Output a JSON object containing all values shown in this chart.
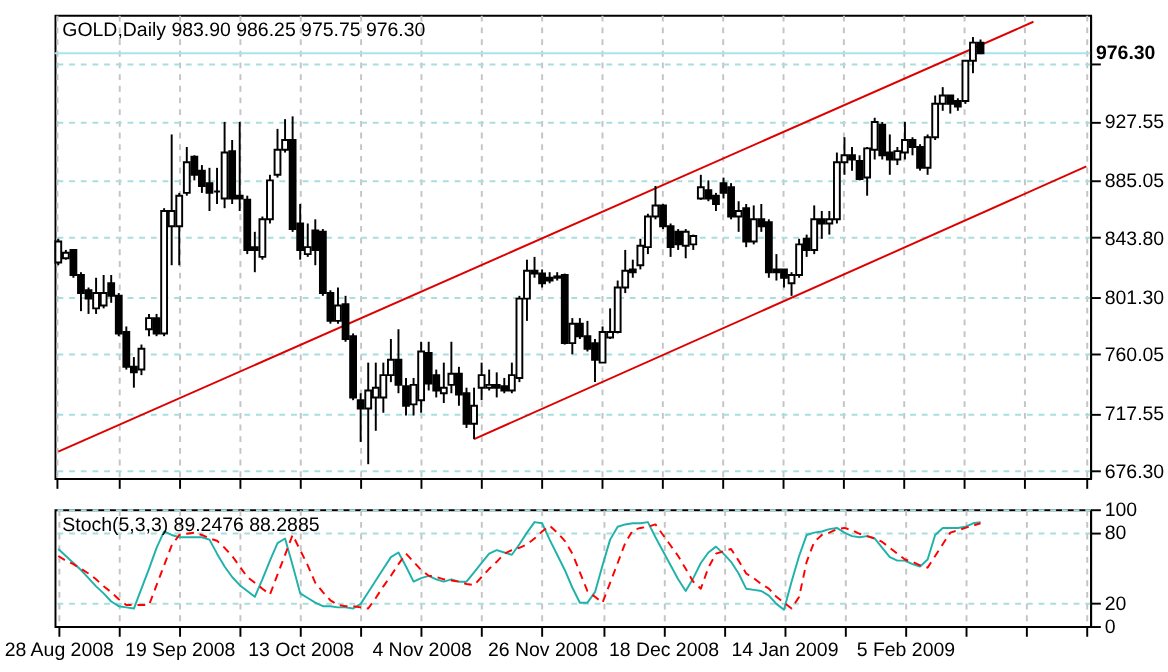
{
  "chart_data": [
    {
      "type": "candlestick",
      "title": "GOLD,Daily  983.90 986.25 975.75 976.30",
      "categories": [
        "28 Aug 2008",
        null,
        null,
        null,
        null,
        null,
        null,
        null,
        null,
        null,
        null,
        null,
        null,
        null,
        null,
        null,
        "19 Sep 2008",
        null,
        null,
        null,
        null,
        null,
        null,
        null,
        null,
        null,
        null,
        null,
        null,
        null,
        null,
        null,
        "13 Oct 2008",
        null,
        null,
        null,
        null,
        null,
        null,
        null,
        null,
        null,
        null,
        null,
        null,
        null,
        null,
        null,
        "4 Nov 2008",
        null,
        null,
        null,
        null,
        null,
        null,
        null,
        null,
        null,
        null,
        null,
        null,
        null,
        null,
        null,
        "26 Nov 2008",
        null,
        null,
        null,
        null,
        null,
        null,
        null,
        null,
        null,
        null,
        null,
        null,
        null,
        null,
        null,
        "18 Dec 2008",
        null,
        null,
        null,
        null,
        null,
        null,
        null,
        null,
        null,
        null,
        null,
        null,
        null,
        null,
        null,
        "14 Jan 2009",
        null,
        null,
        null,
        null,
        null,
        null,
        null,
        null,
        null,
        null,
        null,
        null,
        null,
        null,
        null,
        "5 Feb 2009",
        null,
        null,
        null,
        null,
        null,
        null,
        null,
        null,
        null,
        null,
        null,
        null,
        null,
        null,
        null,
        null,
        null,
        null,
        null,
        null,
        null,
        null,
        null,
        null
      ],
      "ohlc": [
        [
          826,
          843,
          824,
          841
        ],
        [
          829,
          835,
          828,
          833
        ],
        [
          835,
          835,
          815,
          817
        ],
        [
          817,
          819,
          791,
          804
        ],
        [
          806,
          808,
          789,
          800
        ],
        [
          793,
          815,
          789,
          804
        ],
        [
          795,
          817,
          793,
          804
        ],
        [
          811,
          817,
          797,
          802
        ],
        [
          802,
          804,
          773,
          775
        ],
        [
          776,
          780,
          749,
          751
        ],
        [
          751,
          758,
          736,
          747
        ],
        [
          749,
          767,
          745,
          764
        ],
        [
          778,
          789,
          773,
          786
        ],
        [
          786,
          789,
          773,
          775
        ],
        [
          775,
          865,
          773,
          863
        ],
        [
          852,
          918,
          824,
          863
        ],
        [
          852,
          876,
          824,
          874
        ],
        [
          876,
          909,
          874,
          898
        ],
        [
          902,
          903,
          885,
          889
        ],
        [
          892,
          896,
          876,
          881
        ],
        [
          883,
          894,
          863,
          876
        ],
        [
          877,
          894,
          868,
          877
        ],
        [
          872,
          927,
          865,
          905
        ],
        [
          906,
          914,
          868,
          872
        ],
        [
          874,
          927,
          863,
          872
        ],
        [
          871,
          874,
          832,
          835
        ],
        [
          837,
          848,
          819,
          835
        ],
        [
          830,
          859,
          828,
          857
        ],
        [
          857,
          889,
          854,
          885
        ],
        [
          889,
          922,
          887,
          907
        ],
        [
          907,
          929,
          905,
          914
        ],
        [
          914,
          931,
          848,
          850
        ],
        [
          854,
          868,
          828,
          835
        ],
        [
          832,
          854,
          830,
          837
        ],
        [
          849,
          857,
          824,
          835
        ],
        [
          848,
          850,
          802,
          804
        ],
        [
          804,
          806,
          782,
          784
        ],
        [
          784,
          808,
          782,
          795
        ],
        [
          796,
          802,
          769,
          771
        ],
        [
          773,
          775,
          727,
          729
        ],
        [
          727,
          732,
          697,
          721
        ],
        [
          721,
          754,
          681,
          734
        ],
        [
          729,
          754,
          705,
          736
        ],
        [
          729,
          754,
          718,
          745
        ],
        [
          745,
          771,
          740,
          756
        ],
        [
          756,
          778,
          732,
          738
        ],
        [
          737,
          743,
          716,
          723
        ],
        [
          724,
          743,
          716,
          738
        ],
        [
          727,
          769,
          718,
          762
        ],
        [
          761,
          769,
          734,
          739
        ],
        [
          745,
          749,
          729,
          734
        ],
        [
          732,
          754,
          725,
          736
        ],
        [
          738,
          769,
          732,
          746
        ],
        [
          746,
          751,
          723,
          731
        ],
        [
          732,
          736,
          707,
          710
        ],
        [
          710,
          736,
          699,
          723
        ],
        [
          736,
          754,
          727,
          745
        ],
        [
          736,
          749,
          734,
          738
        ],
        [
          738,
          747,
          729,
          736
        ],
        [
          737,
          743,
          732,
          734
        ],
        [
          734,
          754,
          732,
          745
        ],
        [
          743,
          802,
          740,
          800
        ],
        [
          800,
          828,
          784,
          820
        ],
        [
          820,
          830,
          815,
          818
        ],
        [
          818,
          821,
          808,
          811
        ],
        [
          815,
          819,
          811,
          813
        ],
        [
          815,
          819,
          813,
          816
        ],
        [
          817,
          818,
          767,
          768
        ],
        [
          768,
          786,
          760,
          782
        ],
        [
          782,
          786,
          771,
          773
        ],
        [
          773,
          784,
          762,
          764
        ],
        [
          768,
          771,
          740,
          756
        ],
        [
          754,
          780,
          754,
          776
        ],
        [
          772,
          793,
          771,
          776
        ],
        [
          776,
          813,
          775,
          808
        ],
        [
          808,
          835,
          804,
          820
        ],
        [
          821,
          828,
          815,
          819
        ],
        [
          824,
          843,
          821,
          838
        ],
        [
          837,
          861,
          832,
          859
        ],
        [
          859,
          881,
          857,
          867
        ],
        [
          867,
          868,
          850,
          852
        ],
        [
          852,
          854,
          830,
          837
        ],
        [
          848,
          850,
          835,
          839
        ],
        [
          838,
          850,
          829,
          848
        ],
        [
          839,
          846,
          835,
          845
        ],
        [
          872,
          889,
          871,
          880
        ],
        [
          878,
          885,
          870,
          872
        ],
        [
          874,
          876,
          863,
          868
        ],
        [
          883,
          887,
          872,
          876
        ],
        [
          880,
          883,
          857,
          859
        ],
        [
          859,
          870,
          848,
          863
        ],
        [
          865,
          868,
          837,
          841
        ],
        [
          841,
          867,
          839,
          857
        ],
        [
          857,
          868,
          848,
          852
        ],
        [
          855,
          857,
          815,
          819
        ],
        [
          821,
          832,
          813,
          819
        ],
        [
          821,
          821,
          808,
          815
        ],
        [
          811,
          819,
          802,
          817
        ],
        [
          817,
          843,
          815,
          839
        ],
        [
          843,
          846,
          830,
          835
        ],
        [
          835,
          867,
          832,
          857
        ],
        [
          857,
          863,
          843,
          854
        ],
        [
          854,
          863,
          846,
          857
        ],
        [
          857,
          905,
          854,
          898
        ],
        [
          898,
          916,
          889,
          903
        ],
        [
          903,
          909,
          892,
          900
        ],
        [
          899,
          903,
          885,
          886
        ],
        [
          887,
          909,
          874,
          908
        ],
        [
          907,
          930,
          900,
          927
        ],
        [
          925,
          927,
          900,
          903
        ],
        [
          905,
          918,
          889,
          900
        ],
        [
          900,
          909,
          896,
          906
        ],
        [
          905,
          927,
          900,
          914
        ],
        [
          914,
          916,
          903,
          909
        ],
        [
          909,
          911,
          892,
          894
        ],
        [
          894,
          918,
          889,
          916
        ],
        [
          916,
          946,
          914,
          940
        ],
        [
          940,
          952,
          935,
          946
        ],
        [
          946,
          946,
          933,
          940
        ],
        [
          942,
          944,
          935,
          938
        ],
        [
          942,
          971,
          940,
          971
        ],
        [
          971,
          988,
          962,
          984
        ],
        [
          983.9,
          986.25,
          975.75,
          976.3
        ],
        null,
        null,
        null,
        null,
        null,
        null,
        null,
        null,
        null,
        null,
        null,
        null,
        null,
        null
      ],
      "series": [
        {
          "type": "line",
          "color": "#dd0000",
          "line_style": "solid",
          "values": [
            690,
            null,
            null,
            null,
            null,
            null,
            null,
            null,
            null,
            null,
            null,
            null,
            null,
            null,
            null,
            null,
            null,
            null,
            null,
            null,
            null,
            null,
            null,
            null,
            null,
            null,
            null,
            null,
            null,
            null,
            null,
            null,
            null,
            null,
            null,
            null,
            null,
            null,
            null,
            null,
            null,
            null,
            null,
            null,
            null,
            null,
            null,
            null,
            null,
            null,
            null,
            null,
            null,
            null,
            null,
            null,
            null,
            null,
            null,
            null,
            null,
            null,
            null,
            null,
            null,
            null,
            null,
            null,
            null,
            null,
            null,
            null,
            null,
            null,
            null,
            null,
            null,
            null,
            null,
            null,
            null,
            null,
            null,
            null,
            null,
            null,
            null,
            null,
            null,
            null,
            null,
            null,
            null,
            null,
            null,
            null,
            null,
            null,
            null,
            null,
            null,
            null,
            null,
            null,
            null,
            null,
            null,
            null,
            null,
            null,
            null,
            null,
            null,
            null,
            null,
            null,
            null,
            null,
            null,
            null,
            null,
            null,
            null,
            null,
            null,
            null,
            null,
            null,
            null,
            999,
            null,
            null,
            null,
            null,
            null,
            null,
            null
          ]
        },
        {
          "type": "line",
          "color": "#dd0000",
          "line_style": "solid",
          "values": [
            null,
            null,
            null,
            null,
            null,
            null,
            null,
            null,
            null,
            null,
            null,
            null,
            null,
            null,
            null,
            null,
            null,
            null,
            null,
            null,
            null,
            null,
            null,
            null,
            null,
            null,
            null,
            null,
            null,
            null,
            null,
            null,
            null,
            null,
            null,
            null,
            null,
            null,
            null,
            null,
            null,
            null,
            null,
            null,
            null,
            null,
            null,
            null,
            null,
            null,
            null,
            null,
            null,
            null,
            null,
            699,
            null,
            null,
            null,
            null,
            null,
            null,
            null,
            null,
            null,
            null,
            null,
            null,
            null,
            null,
            null,
            null,
            null,
            null,
            null,
            null,
            null,
            null,
            null,
            null,
            null,
            null,
            null,
            null,
            null,
            null,
            null,
            null,
            null,
            null,
            null,
            null,
            null,
            null,
            null,
            null,
            null,
            null,
            null,
            null,
            null,
            null,
            null,
            null,
            null,
            null,
            null,
            null,
            null,
            null,
            null,
            null,
            null,
            null,
            null,
            null,
            null,
            null,
            null,
            null,
            null,
            null,
            null,
            null,
            null,
            null,
            null,
            null,
            null,
            null,
            null,
            null,
            null,
            null,
            null,
            null,
            895
          ]
        }
      ],
      "ylim": [
        671,
        1004
      ],
      "yticks": [
        {
          "value": 676.3,
          "label": "676.30"
        },
        {
          "value": 717.55,
          "label": "717.55"
        },
        {
          "value": 760.05,
          "label": "760.05"
        },
        {
          "value": 801.3,
          "label": "801.30"
        },
        {
          "value": 843.8,
          "label": "843.80"
        },
        {
          "value": 885.05,
          "label": "885.05"
        },
        {
          "value": 927.55,
          "label": "927.55"
        },
        {
          "value": 968.8,
          "label": null
        }
      ],
      "ref_lines": [
        {
          "axis": "y",
          "value": 976.3,
          "label": "976.30",
          "color": "#a8e4ec"
        }
      ],
      "grid": true,
      "tick_labels": "y"
    },
    {
      "type": "line",
      "title": "Stoch(5,3,3) 89.2476 88.2885",
      "series": [
        {
          "color": "#20b2aa",
          "line_style": "solid",
          "values": [
            66,
            60,
            54,
            48,
            41,
            34,
            28,
            21,
            17,
            16,
            15,
            32,
            49,
            67,
            81,
            78,
            76,
            76,
            76,
            76,
            74,
            62,
            51,
            42,
            35,
            30,
            25,
            40,
            56,
            71,
            75,
            52,
            28,
            24,
            20,
            17,
            17,
            16,
            16,
            15,
            19,
            29,
            39,
            49,
            59,
            63,
            51,
            38,
            41,
            43,
            40,
            38,
            40,
            38,
            38,
            46,
            54,
            62,
            65,
            63,
            61,
            70,
            80,
            89,
            88,
            74,
            61,
            48,
            33,
            20,
            20,
            29,
            52,
            74,
            85,
            87,
            88,
            88,
            89,
            76,
            64,
            52,
            40,
            30,
            41,
            54,
            63,
            68,
            62,
            55,
            45,
            32,
            31,
            30,
            26,
            19,
            14,
            38,
            60,
            78,
            80,
            81,
            83,
            84,
            80,
            77,
            76,
            77,
            75,
            67,
            59,
            56,
            56,
            53,
            51,
            57,
            78,
            84,
            84,
            84,
            85,
            88,
            89,
            null,
            null,
            null,
            null,
            null,
            null,
            null,
            null,
            null,
            null,
            null,
            null,
            null,
            null
          ]
        },
        {
          "color": "#ff0000",
          "line_style": "dashed",
          "values": [
            60,
            56,
            53,
            49,
            45,
            40,
            34,
            29,
            23,
            18,
            18,
            18,
            18,
            35,
            52,
            69,
            78,
            79,
            80,
            78,
            75,
            73,
            67,
            60,
            51,
            42,
            37,
            32,
            27,
            44,
            61,
            78,
            65,
            52,
            37,
            29,
            22,
            18,
            17,
            17,
            16,
            15,
            24,
            34,
            43,
            53,
            62,
            55,
            48,
            43,
            42,
            40,
            39,
            38,
            36,
            35,
            42,
            49,
            55,
            62,
            65,
            67,
            70,
            75,
            81,
            86,
            80,
            73,
            62,
            46,
            30,
            25,
            20,
            37,
            54,
            71,
            82,
            84,
            85,
            87,
            78,
            69,
            60,
            49,
            38,
            32,
            50,
            62,
            64,
            66,
            56,
            45,
            41,
            36,
            32,
            25,
            20,
            15,
            25,
            55,
            72,
            78,
            80,
            83,
            84,
            82,
            79,
            77,
            75,
            72,
            67,
            62,
            57,
            55,
            52,
            50,
            60,
            70,
            80,
            82,
            84,
            86,
            88,
            null,
            null,
            null,
            null,
            null,
            null,
            null,
            null,
            null,
            null,
            null,
            null,
            null,
            null
          ]
        }
      ],
      "ylim": [
        0,
        100
      ],
      "yticks": [
        0,
        20,
        80,
        100
      ],
      "grid": true
    }
  ]
}
